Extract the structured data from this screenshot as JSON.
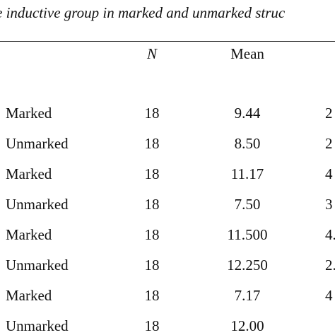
{
  "header": {
    "title": "e inductive group in marked and unmarked struc"
  },
  "table": {
    "columns": [
      "N",
      "Mean"
    ],
    "rows": [
      [
        "Marked",
        "18",
        "9.44",
        "2"
      ],
      [
        "Unmarked",
        "18",
        "8.50",
        "2"
      ],
      [
        "Marked",
        "18",
        "11.17",
        "4"
      ],
      [
        "Unmarked",
        "18",
        "7.50",
        "3"
      ],
      [
        "Marked",
        "18",
        "11.500",
        "4."
      ],
      [
        "Unmarked",
        "18",
        "12.250",
        "2."
      ],
      [
        "Marked",
        "18",
        "7.17",
        "4"
      ],
      [
        "Unmarked",
        "18",
        "12.00"
      ]
    ]
  }
}
